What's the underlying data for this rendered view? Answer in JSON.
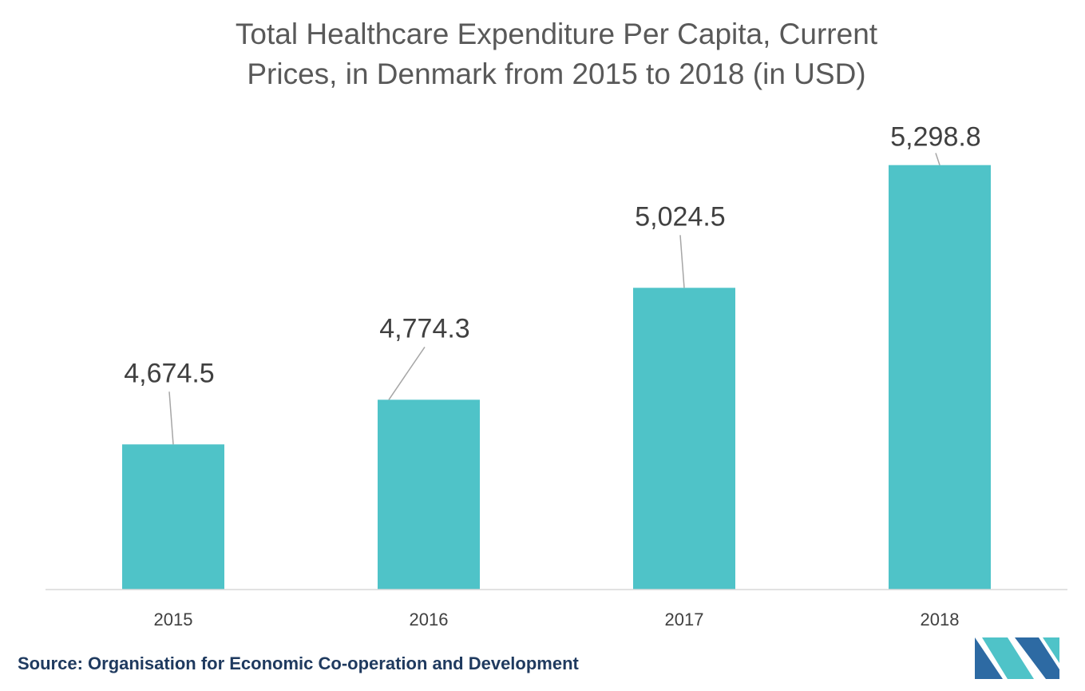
{
  "chart_data": {
    "type": "bar",
    "title_lines": [
      "Total Healthcare Expenditure Per Capita, Current",
      "Prices, in Denmark from 2015 to 2018 (in USD)"
    ],
    "categories": [
      "2015",
      "2016",
      "2017",
      "2018"
    ],
    "values": [
      4674.5,
      4774.3,
      5024.5,
      5298.8
    ],
    "value_labels": [
      "4,674.5",
      "4,774.3",
      "5,024.5",
      "5,298.8"
    ],
    "xlabel": "",
    "ylabel": "",
    "ylim": [
      4350,
      5400
    ],
    "grid": false,
    "legend": "none",
    "bar_color": "#4fc3c8"
  },
  "source": "Source: Organisation for Economic Co-operation and Development",
  "logo": {
    "name": "Mordor Intelligence",
    "colors": [
      "#2d6aa3",
      "#4fc3c8"
    ]
  }
}
